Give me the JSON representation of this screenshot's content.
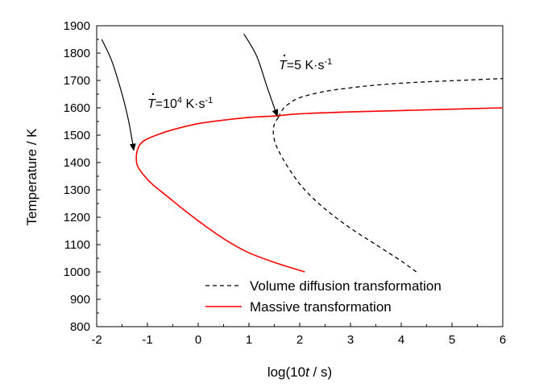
{
  "chart_data": {
    "type": "line",
    "xlabel": "log(10t / s)",
    "ylabel": "Temperature / K",
    "xlim": [
      -2,
      6
    ],
    "ylim": [
      800,
      1900
    ],
    "xticks": [
      "-2",
      "-1",
      "0",
      "1",
      "2",
      "3",
      "4",
      "5",
      "6"
    ],
    "yticks": [
      "800",
      "900",
      "1000",
      "1100",
      "1200",
      "1300",
      "1400",
      "1500",
      "1600",
      "1700",
      "1800",
      "1900"
    ],
    "grid": false,
    "legend_position": "bottom-right",
    "series": [
      {
        "name": "Volume diffusion transformation",
        "style": "dashed",
        "color": "#000000",
        "points": [
          [
            1.58,
            1565
          ],
          [
            1.65,
            1590
          ],
          [
            1.75,
            1610
          ],
          [
            2.0,
            1637
          ],
          [
            2.5,
            1660
          ],
          [
            3.0,
            1673
          ],
          [
            3.5,
            1683
          ],
          [
            4.0,
            1690
          ],
          [
            4.5,
            1695
          ],
          [
            5.0,
            1699
          ],
          [
            5.5,
            1703
          ],
          [
            6.0,
            1707
          ]
        ],
        "points_lower": [
          [
            1.58,
            1565
          ],
          [
            1.5,
            1540
          ],
          [
            1.48,
            1510
          ],
          [
            1.52,
            1470
          ],
          [
            1.65,
            1420
          ],
          [
            1.85,
            1360
          ],
          [
            2.1,
            1300
          ],
          [
            2.5,
            1230
          ],
          [
            3.0,
            1160
          ],
          [
            3.5,
            1100
          ],
          [
            4.0,
            1040
          ],
          [
            4.3,
            1000
          ]
        ]
      },
      {
        "name": "Massive transformation",
        "style": "solid",
        "color": "#ff0000",
        "points": [
          [
            -1.2,
            1445
          ],
          [
            -1.15,
            1465
          ],
          [
            -1.05,
            1482
          ],
          [
            -0.8,
            1502
          ],
          [
            -0.5,
            1520
          ],
          [
            0.0,
            1542
          ],
          [
            0.5,
            1555
          ],
          [
            1.0,
            1565
          ],
          [
            1.5,
            1570
          ],
          [
            2.0,
            1578
          ],
          [
            3.0,
            1585
          ],
          [
            4.0,
            1590
          ],
          [
            5.0,
            1595
          ],
          [
            6.0,
            1600
          ]
        ],
        "points_lower": [
          [
            -1.2,
            1445
          ],
          [
            -1.22,
            1420
          ],
          [
            -1.2,
            1390
          ],
          [
            -1.1,
            1360
          ],
          [
            -0.9,
            1320
          ],
          [
            -0.6,
            1275
          ],
          [
            -0.2,
            1215
          ],
          [
            0.2,
            1160
          ],
          [
            0.6,
            1110
          ],
          [
            1.0,
            1070
          ],
          [
            1.5,
            1035
          ],
          [
            2.1,
            1000
          ]
        ]
      }
    ],
    "cooling_curves": [
      {
        "points": [
          [
            -1.9,
            1850
          ],
          [
            -1.7,
            1770
          ],
          [
            -1.5,
            1650
          ],
          [
            -1.38,
            1560
          ],
          [
            -1.3,
            1480
          ],
          [
            -1.27,
            1445
          ]
        ]
      },
      {
        "points": [
          [
            0.9,
            1870
          ],
          [
            1.15,
            1790
          ],
          [
            1.35,
            1680
          ],
          [
            1.5,
            1600
          ],
          [
            1.56,
            1570
          ]
        ]
      }
    ],
    "annotations": [
      {
        "id": "rate1",
        "dot_symbol": "T",
        "text": "=10",
        "sup": "4",
        "unit": " K·s",
        "unit_sup": "-1"
      },
      {
        "id": "rate2",
        "dot_symbol": "T",
        "text": "=5 K·s",
        "sup": "",
        "unit": "",
        "unit_sup": "-1"
      }
    ]
  }
}
